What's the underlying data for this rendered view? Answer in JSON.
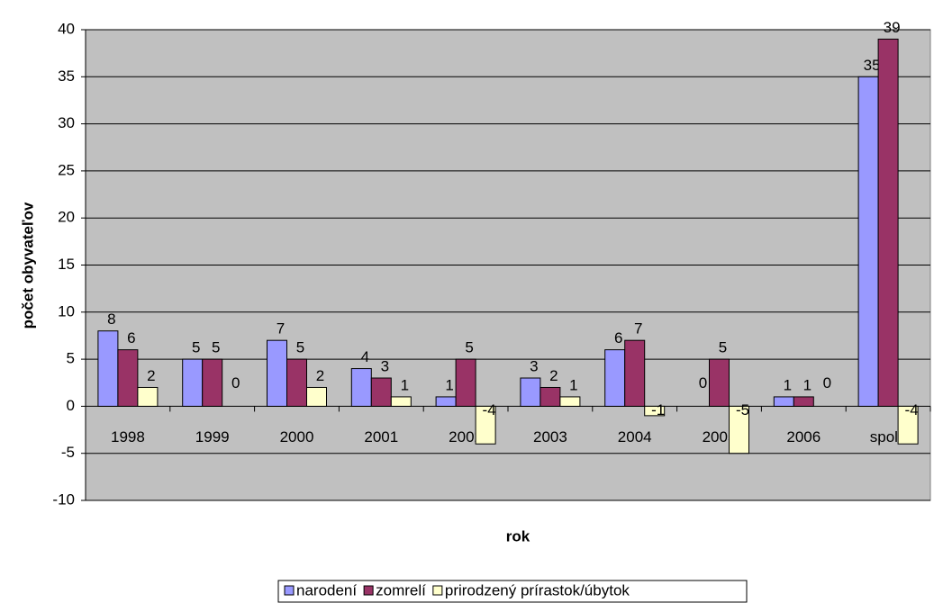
{
  "chart_data": {
    "type": "bar",
    "categories": [
      "1998",
      "1999",
      "2000",
      "2001",
      "2002",
      "2003",
      "2004",
      "2005",
      "2006",
      "spolu"
    ],
    "series": [
      {
        "name": "narodení",
        "color": "#9999ff",
        "values": [
          8,
          5,
          7,
          4,
          1,
          3,
          6,
          0,
          1,
          35
        ]
      },
      {
        "name": "zomrelí",
        "color": "#993366",
        "values": [
          6,
          5,
          5,
          3,
          5,
          2,
          7,
          5,
          1,
          39
        ]
      },
      {
        "name": "prirodzený prírastok/úbytok",
        "color": "#ffffcc",
        "values": [
          2,
          0,
          2,
          1,
          -4,
          1,
          -1,
          -5,
          0,
          -4
        ]
      }
    ],
    "xlabel": "rok",
    "ylabel": "počet obyvateľov",
    "ylim": [
      -10,
      40
    ],
    "yticks": [
      -10,
      -5,
      0,
      5,
      10,
      15,
      20,
      25,
      30,
      35,
      40
    ],
    "grid": true,
    "legend": "bottom"
  }
}
